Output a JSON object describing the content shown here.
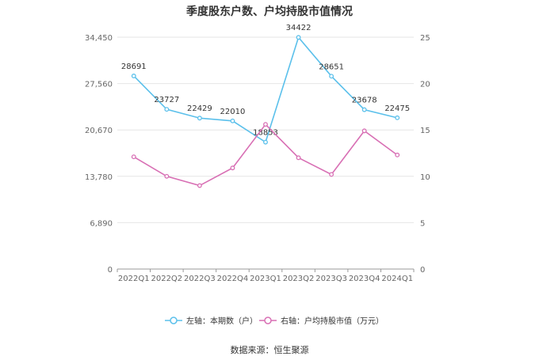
{
  "chart_data": {
    "type": "line",
    "title": "季度股东户数、户均持股市值情况",
    "categories": [
      "2022Q1",
      "2022Q2",
      "2022Q3",
      "2022Q4",
      "2023Q1",
      "2023Q2",
      "2023Q3",
      "2023Q4",
      "2024Q1"
    ],
    "left_axis": {
      "ticks": [
        "0",
        "6,890",
        "13,780",
        "20,670",
        "27,560",
        "34,450"
      ],
      "ylim": [
        0,
        34450
      ]
    },
    "right_axis": {
      "ticks": [
        "0",
        "5",
        "10",
        "15",
        "20",
        "25"
      ],
      "ylim": [
        0,
        25
      ]
    },
    "series": [
      {
        "name": "左轴：本期数（户）",
        "axis": "left",
        "color": "#5bc0eb",
        "values": [
          28691,
          23727,
          22429,
          22010,
          18853,
          34422,
          28651,
          23678,
          22475
        ],
        "labels": [
          "28691",
          "23727",
          "22429",
          "22010",
          "18853",
          "34422",
          "28651",
          "23678",
          "22475"
        ]
      },
      {
        "name": "右轴：户均持股市值（万元）",
        "axis": "right",
        "color": "#d86fb4",
        "values": [
          12.1,
          10.0,
          9.0,
          10.9,
          15.6,
          12.0,
          10.2,
          14.9,
          12.3
        ]
      }
    ],
    "grid": true,
    "legend": "bottom"
  },
  "source": "数据来源：恒生聚源"
}
